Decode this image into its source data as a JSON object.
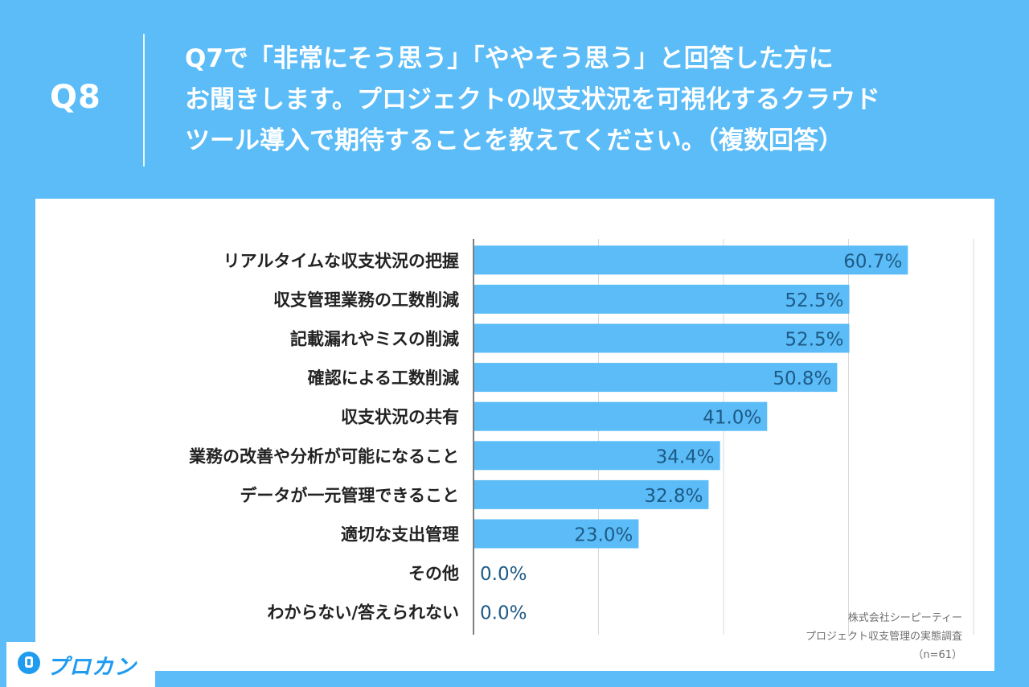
{
  "header": {
    "q_number": "Q8",
    "question": "Q7で「非常にそう思う」「ややそう思う」と回答した方に\nお聞きします。プロジェクトの収支状況を可視化するクラウド\nツール導入で期待することを教えてください。（複数回答）"
  },
  "chart_data": {
    "type": "bar",
    "orientation": "horizontal",
    "categories": [
      "リアルタイムな収支状況の把握",
      "収支管理業務の工数削減",
      "記載漏れやミスの削減",
      "確認による工数削減",
      "収支状況の共有",
      "業務の改善や分析が可能になること",
      "データが一元管理できること",
      "適切な支出管理",
      "その他",
      "わからない/答えられない"
    ],
    "values": [
      60.7,
      52.5,
      52.5,
      50.8,
      41.0,
      34.4,
      32.8,
      23.0,
      0.0,
      0.0
    ],
    "value_labels": [
      "60.7%",
      "52.5%",
      "52.5%",
      "50.8%",
      "41.0%",
      "34.4%",
      "32.8%",
      "23.0%",
      "0.0%",
      "0.0%"
    ],
    "xlim": [
      0,
      70
    ],
    "grid": true,
    "bar_color": "#5bbcf7",
    "label_color": "#1e5a86"
  },
  "credit": {
    "line1": "株式会社シーピーティー",
    "line2": "プロジェクト収支管理の実態調査",
    "line3": "（n=61）"
  },
  "logo": {
    "text": "プロカン",
    "icon": "procan-logo-icon"
  }
}
